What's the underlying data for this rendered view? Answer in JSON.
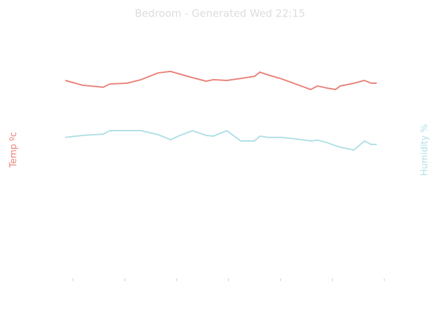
{
  "chart_data": {
    "type": "line",
    "title": "Bedroom - Generated Wed 22:15",
    "ylabel": "Temp ºc",
    "y2label": "Humidity %",
    "x": [
      -0.146,
      0.185,
      0.583,
      0.715,
      1.046,
      1.311,
      1.642,
      1.881,
      2.066,
      2.305,
      2.57,
      2.702,
      2.967,
      3.232,
      3.497,
      3.603,
      3.762,
      4.026,
      4.291,
      4.583,
      4.715,
      4.887,
      5.06,
      5.152,
      5.417,
      5.616,
      5.748,
      5.854
    ],
    "xlim": [
      -0.3,
      6.2
    ],
    "xticks": [
      0,
      1,
      2,
      3,
      4,
      5,
      6
    ],
    "ylim": [
      14,
      24
    ],
    "y2lim": [
      0,
      100
    ],
    "series": [
      {
        "color": "#e8827a",
        "values": [
          21.89,
          21.7,
          21.62,
          21.75,
          21.78,
          21.92,
          22.19,
          22.25,
          22.14,
          22.0,
          21.86,
          21.92,
          21.89,
          21.97,
          22.05,
          22.22,
          22.11,
          21.95,
          21.75,
          21.53,
          21.67,
          21.59,
          21.53,
          21.67,
          21.78,
          21.89,
          21.78,
          21.78
        ]
      },
      {
        "color": "#b0e0e6",
        "axis": "y2",
        "values": [
          56.2,
          57.0,
          57.5,
          58.9,
          58.9,
          58.9,
          57.3,
          55.3,
          57.0,
          58.9,
          57.0,
          56.7,
          58.9,
          54.8,
          54.8,
          56.7,
          56.2,
          56.2,
          55.6,
          54.8,
          55.1,
          54.2,
          52.9,
          52.3,
          51.2,
          54.8,
          53.4,
          53.4
        ]
      }
    ]
  }
}
